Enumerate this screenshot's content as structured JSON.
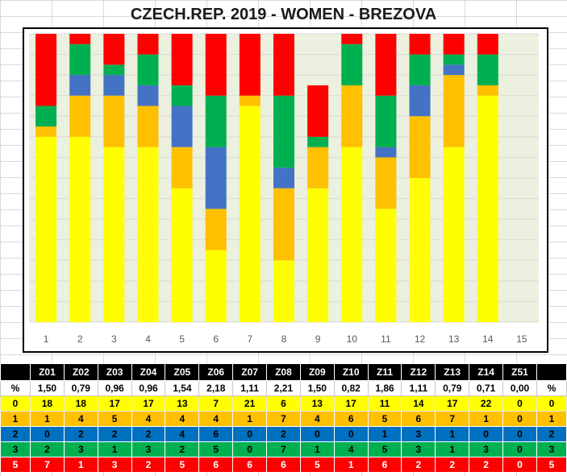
{
  "title": "CZECH.REP. 2019 - WOMEN - BREZOVA",
  "colors": {
    "score_0": "#ffff00",
    "score_1": "#ffc000",
    "score_2": "#4472c4",
    "score_3": "#00b050",
    "score_5": "#ff0000",
    "plot_bg": "#ebf1de",
    "grid": "#d9d9d9"
  },
  "chart_data": {
    "type": "bar",
    "stacked": true,
    "categories": [
      "1",
      "2",
      "3",
      "4",
      "5",
      "6",
      "7",
      "8",
      "9",
      "10",
      "11",
      "12",
      "13",
      "14",
      "15"
    ],
    "series": [
      {
        "key": "0",
        "color": "#ffff00",
        "values": [
          18,
          18,
          17,
          17,
          13,
          7,
          21,
          6,
          13,
          17,
          11,
          14,
          17,
          22,
          0
        ]
      },
      {
        "key": "1",
        "color": "#ffc000",
        "values": [
          1,
          4,
          5,
          4,
          4,
          4,
          1,
          7,
          4,
          6,
          5,
          6,
          7,
          1,
          0
        ]
      },
      {
        "key": "2",
        "color": "#4472c4",
        "values": [
          0,
          2,
          2,
          2,
          4,
          6,
          0,
          2,
          0,
          0,
          1,
          3,
          1,
          0,
          0
        ]
      },
      {
        "key": "3",
        "color": "#00b050",
        "values": [
          2,
          3,
          1,
          3,
          2,
          5,
          0,
          7,
          1,
          4,
          5,
          3,
          1,
          3,
          0
        ]
      },
      {
        "key": "5",
        "color": "#ff0000",
        "values": [
          7,
          1,
          3,
          2,
          5,
          6,
          6,
          6,
          5,
          1,
          6,
          2,
          2,
          2,
          0
        ]
      }
    ],
    "ylim": [
      0,
      28
    ],
    "grid": true,
    "legend": "none"
  },
  "table": {
    "headers": [
      "",
      "Z01",
      "Z02",
      "Z03",
      "Z04",
      "Z05",
      "Z06",
      "Z07",
      "Z08",
      "Z09",
      "Z10",
      "Z11",
      "Z12",
      "Z13",
      "Z14",
      "Z51",
      ""
    ],
    "rows": [
      {
        "cls": "pct",
        "cells": [
          "%",
          "1,50",
          "0,79",
          "0,96",
          "0,96",
          "1,54",
          "2,18",
          "1,11",
          "2,21",
          "1,50",
          "0,82",
          "1,86",
          "1,11",
          "0,79",
          "0,71",
          "0,00",
          "%"
        ]
      },
      {
        "cls": "r0",
        "cells": [
          "0",
          "18",
          "18",
          "17",
          "17",
          "13",
          "7",
          "21",
          "6",
          "13",
          "17",
          "11",
          "14",
          "17",
          "22",
          "0",
          "0"
        ]
      },
      {
        "cls": "r1",
        "cells": [
          "1",
          "1",
          "4",
          "5",
          "4",
          "4",
          "4",
          "1",
          "7",
          "4",
          "6",
          "5",
          "6",
          "7",
          "1",
          "0",
          "1"
        ]
      },
      {
        "cls": "r2",
        "cells": [
          "2",
          "0",
          "2",
          "2",
          "2",
          "4",
          "6",
          "0",
          "2",
          "0",
          "0",
          "1",
          "3",
          "1",
          "0",
          "0",
          "2"
        ]
      },
      {
        "cls": "r3",
        "cells": [
          "3",
          "2",
          "3",
          "1",
          "3",
          "2",
          "5",
          "0",
          "7",
          "1",
          "4",
          "5",
          "3",
          "1",
          "3",
          "0",
          "3"
        ]
      },
      {
        "cls": "r5",
        "cells": [
          "5",
          "7",
          "1",
          "3",
          "2",
          "5",
          "6",
          "6",
          "6",
          "5",
          "1",
          "6",
          "2",
          "2",
          "2",
          "0",
          "5"
        ]
      }
    ]
  }
}
